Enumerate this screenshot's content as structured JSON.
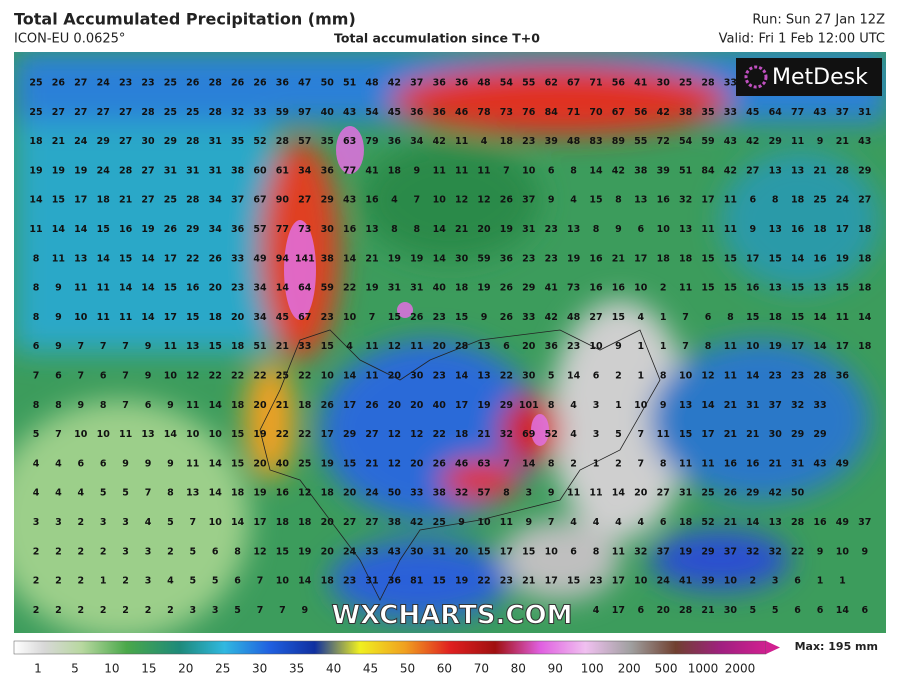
{
  "header": {
    "title": "Total Accumulated Precipitation (mm)",
    "model": "ICON-EU 0.0625°",
    "subtitle": "Total accumulation since T+0",
    "run": "Run: Sun 27 Jan 12Z",
    "valid": "Valid: Fri 1 Feb 12:00 UTC"
  },
  "logo": "MetDesk",
  "watermark": "WXCHARTS.COM",
  "map": {
    "grid": [
      [
        25,
        26,
        27,
        24,
        23,
        23,
        25,
        26,
        28,
        26,
        26,
        36,
        47,
        50,
        51,
        48,
        42,
        37,
        36,
        36,
        48,
        54,
        55,
        62,
        67,
        71,
        56,
        41,
        30,
        25,
        28,
        33
      ],
      [
        25,
        27,
        27,
        27,
        27,
        28,
        25,
        25,
        28,
        32,
        33,
        59,
        97,
        40,
        43,
        54,
        45,
        36,
        36,
        46,
        78,
        73,
        76,
        84,
        71,
        70,
        67,
        56,
        42,
        38,
        35,
        33,
        45,
        64,
        77,
        43,
        37,
        31
      ],
      [
        18,
        21,
        24,
        29,
        27,
        30,
        29,
        28,
        31,
        35,
        52,
        28,
        57,
        35,
        63,
        79,
        36,
        34,
        42,
        11,
        4,
        18,
        23,
        39,
        48,
        83,
        89,
        55,
        72,
        54,
        59,
        43,
        42,
        29,
        11,
        9,
        21,
        43
      ],
      [
        19,
        19,
        19,
        24,
        28,
        27,
        31,
        31,
        31,
        38,
        60,
        61,
        34,
        36,
        77,
        41,
        18,
        9,
        11,
        11,
        11,
        7,
        10,
        6,
        8,
        14,
        42,
        38,
        39,
        51,
        84,
        42,
        27,
        13,
        13,
        21,
        28,
        29
      ],
      [
        14,
        15,
        17,
        18,
        21,
        27,
        25,
        28,
        34,
        37,
        67,
        90,
        27,
        29,
        43,
        16,
        4,
        7,
        10,
        12,
        12,
        26,
        37,
        9,
        4,
        15,
        8,
        13,
        16,
        32,
        17,
        11,
        6,
        8,
        18,
        25,
        24,
        27
      ],
      [
        11,
        14,
        14,
        15,
        16,
        19,
        26,
        29,
        34,
        36,
        57,
        77,
        73,
        30,
        16,
        13,
        8,
        8,
        14,
        21,
        20,
        19,
        31,
        23,
        13,
        8,
        9,
        6,
        10,
        13,
        11,
        11,
        9,
        13,
        16,
        18,
        17,
        18
      ],
      [
        8,
        11,
        13,
        14,
        15,
        14,
        17,
        22,
        26,
        33,
        49,
        94,
        141,
        38,
        14,
        21,
        19,
        19,
        14,
        30,
        59,
        36,
        23,
        23,
        19,
        16,
        21,
        17,
        18,
        18,
        15,
        15,
        17,
        15,
        14,
        16,
        19,
        18
      ],
      [
        8,
        9,
        11,
        11,
        14,
        14,
        15,
        16,
        20,
        23,
        34,
        14,
        64,
        59,
        22,
        19,
        31,
        31,
        40,
        18,
        19,
        26,
        29,
        41,
        73,
        16,
        16,
        10,
        2,
        11,
        15,
        15,
        16,
        13,
        15,
        13,
        15,
        18
      ],
      [
        8,
        9,
        10,
        11,
        11,
        14,
        17,
        15,
        18,
        20,
        34,
        45,
        67,
        23,
        10,
        7,
        15,
        26,
        23,
        15,
        9,
        26,
        33,
        42,
        48,
        27,
        15,
        4,
        1,
        7,
        6,
        8,
        15,
        18,
        15,
        14,
        11,
        14
      ],
      [
        6,
        9,
        7,
        7,
        7,
        9,
        11,
        13,
        15,
        18,
        51,
        21,
        33,
        15,
        4,
        11,
        12,
        11,
        20,
        28,
        13,
        6,
        20,
        36,
        23,
        10,
        9,
        1,
        1,
        7,
        8,
        11,
        10,
        19,
        17,
        14,
        17,
        18
      ],
      [
        7,
        6,
        7,
        6,
        7,
        9,
        10,
        12,
        22,
        22,
        22,
        25,
        22,
        10,
        14,
        11,
        20,
        30,
        23,
        14,
        13,
        22,
        30,
        5,
        14,
        6,
        2,
        1,
        8,
        10,
        12,
        11,
        14,
        23,
        23,
        28,
        36
      ],
      [
        8,
        8,
        9,
        8,
        7,
        6,
        9,
        11,
        14,
        18,
        20,
        21,
        18,
        26,
        17,
        26,
        20,
        20,
        40,
        17,
        19,
        29,
        101,
        8,
        4,
        3,
        1,
        10,
        9,
        13,
        14,
        21,
        31,
        37,
        32,
        33
      ],
      [
        5,
        7,
        10,
        10,
        11,
        13,
        14,
        10,
        10,
        15,
        19,
        22,
        22,
        17,
        29,
        27,
        12,
        12,
        22,
        18,
        21,
        32,
        69,
        52,
        4,
        3,
        5,
        7,
        11,
        15,
        17,
        21,
        21,
        30,
        29,
        29
      ],
      [
        4,
        4,
        6,
        6,
        9,
        9,
        9,
        11,
        14,
        15,
        20,
        40,
        25,
        19,
        15,
        21,
        12,
        20,
        26,
        46,
        63,
        7,
        14,
        8,
        2,
        1,
        2,
        7,
        8,
        11,
        11,
        16,
        16,
        21,
        31,
        43,
        49
      ],
      [
        4,
        4,
        4,
        5,
        5,
        7,
        8,
        13,
        14,
        18,
        19,
        16,
        12,
        18,
        20,
        24,
        50,
        33,
        38,
        32,
        57,
        8,
        3,
        9,
        11,
        11,
        14,
        20,
        27,
        31,
        25,
        26,
        29,
        42,
        50
      ],
      [
        3,
        3,
        2,
        3,
        3,
        4,
        5,
        7,
        10,
        14,
        17,
        18,
        18,
        20,
        27,
        27,
        38,
        42,
        25,
        9,
        10,
        11,
        9,
        7,
        4,
        4,
        4,
        4,
        6,
        18,
        52,
        21,
        14,
        13,
        28,
        16,
        49,
        37
      ],
      [
        2,
        2,
        2,
        2,
        3,
        3,
        2,
        5,
        6,
        8,
        12,
        15,
        19,
        20,
        24,
        33,
        43,
        30,
        31,
        20,
        15,
        17,
        15,
        10,
        6,
        8,
        11,
        32,
        37,
        19,
        29,
        37,
        32,
        32,
        22,
        9,
        10,
        9
      ],
      [
        2,
        2,
        2,
        1,
        2,
        3,
        4,
        5,
        5,
        6,
        7,
        10,
        14,
        18,
        23,
        31,
        36,
        81,
        15,
        19,
        22,
        23,
        21,
        17,
        15,
        23,
        17,
        10,
        24,
        41,
        39,
        10,
        2,
        3,
        6,
        1,
        1
      ],
      [
        2,
        2,
        2,
        2,
        2,
        2,
        2,
        3,
        3,
        5,
        7,
        7,
        9,
        null,
        null,
        null,
        null,
        null,
        null,
        null,
        null,
        null,
        null,
        null,
        null,
        4,
        17,
        6,
        20,
        28,
        21,
        30,
        5,
        5,
        6,
        6,
        14,
        6
      ]
    ]
  },
  "legend": {
    "labels": [
      "1",
      "5",
      "10",
      "15",
      "20",
      "25",
      "30",
      "35",
      "40",
      "45",
      "50",
      "60",
      "70",
      "80",
      "90",
      "100",
      "200",
      "500",
      "1000",
      "2000"
    ],
    "max": "Max: 195 mm"
  }
}
